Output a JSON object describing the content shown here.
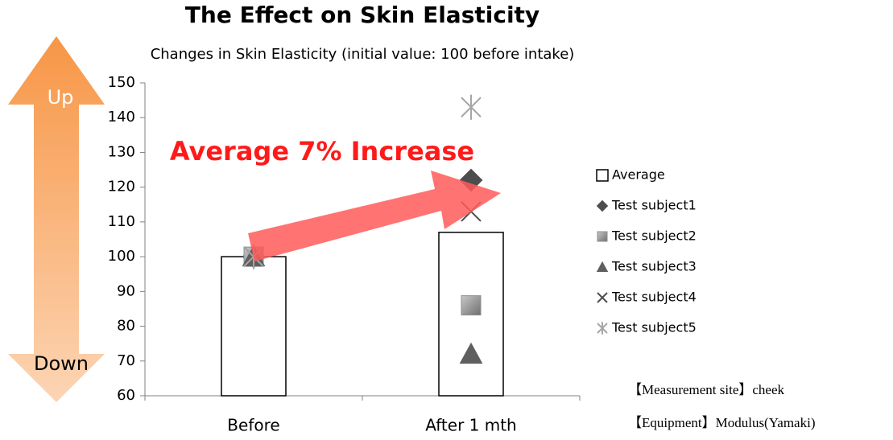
{
  "chart_data": {
    "type": "bar",
    "title": "The Effect on Skin Elasticity",
    "subtitle": "Changes in Skin Elasticity (initial value: 100 before intake)",
    "categories": [
      "Before",
      "After 1 mth"
    ],
    "series": [
      {
        "name": "Average",
        "type": "bar",
        "marker": "square",
        "color": "#ffffff",
        "values": [
          100,
          107
        ]
      },
      {
        "name": "Test subject1",
        "type": "scatter",
        "marker": "diamond",
        "color": "#4d4d4d",
        "values": [
          100,
          122
        ]
      },
      {
        "name": "Test subject2",
        "type": "scatter",
        "marker": "square",
        "color": "#8c8c8c",
        "values": [
          100,
          86
        ]
      },
      {
        "name": "Test subject3",
        "type": "scatter",
        "marker": "triangle",
        "color": "#5f5f5f",
        "values": [
          100,
          72
        ]
      },
      {
        "name": "Test subject4",
        "type": "scatter",
        "marker": "x",
        "color": "#4d4d4d",
        "values": [
          100,
          113
        ]
      },
      {
        "name": "Test subject5",
        "type": "scatter",
        "marker": "star",
        "color": "#a6a6a6",
        "values": [
          100,
          143
        ]
      }
    ],
    "ylim": [
      60,
      150
    ],
    "yticks": [
      60,
      70,
      80,
      90,
      100,
      110,
      120,
      130,
      140,
      150
    ],
    "legend": "right",
    "annotations": {
      "increase": "Average 7% Increase",
      "up": "Up",
      "down": "Down",
      "site": "【Measurement site】cheek",
      "equipment": "【Equipment】Modulus(Yamaki)"
    }
  }
}
